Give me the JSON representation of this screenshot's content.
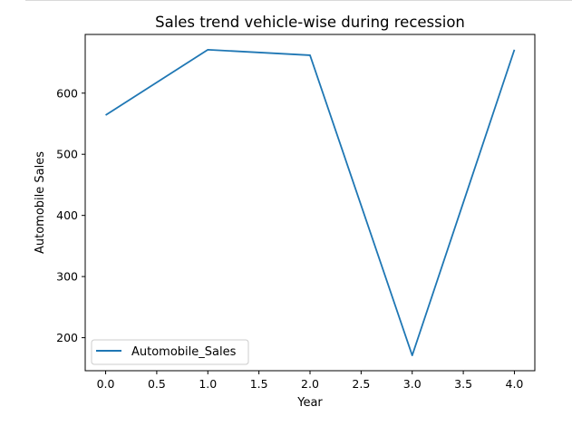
{
  "chart_data": {
    "type": "line",
    "title": "Sales trend vehicle-wise during recession",
    "xlabel": "Year",
    "ylabel": "Automobile Sales",
    "x": [
      0,
      1,
      2,
      3,
      4
    ],
    "series": [
      {
        "name": "Automobile_Sales",
        "values": [
          564,
          671,
          662,
          171,
          671
        ],
        "color": "#1f77b4"
      }
    ],
    "xlim": [
      -0.2,
      4.2
    ],
    "ylim": [
      146,
      696
    ],
    "xticks": [
      "0.0",
      "0.5",
      "1.0",
      "1.5",
      "2.0",
      "2.5",
      "3.0",
      "3.5",
      "4.0"
    ],
    "xtick_values": [
      0,
      0.5,
      1,
      1.5,
      2,
      2.5,
      3,
      3.5,
      4
    ],
    "yticks": [
      "200",
      "300",
      "400",
      "500",
      "600"
    ],
    "ytick_values": [
      200,
      300,
      400,
      500,
      600
    ],
    "grid": false,
    "legend_position": "lower-left"
  }
}
